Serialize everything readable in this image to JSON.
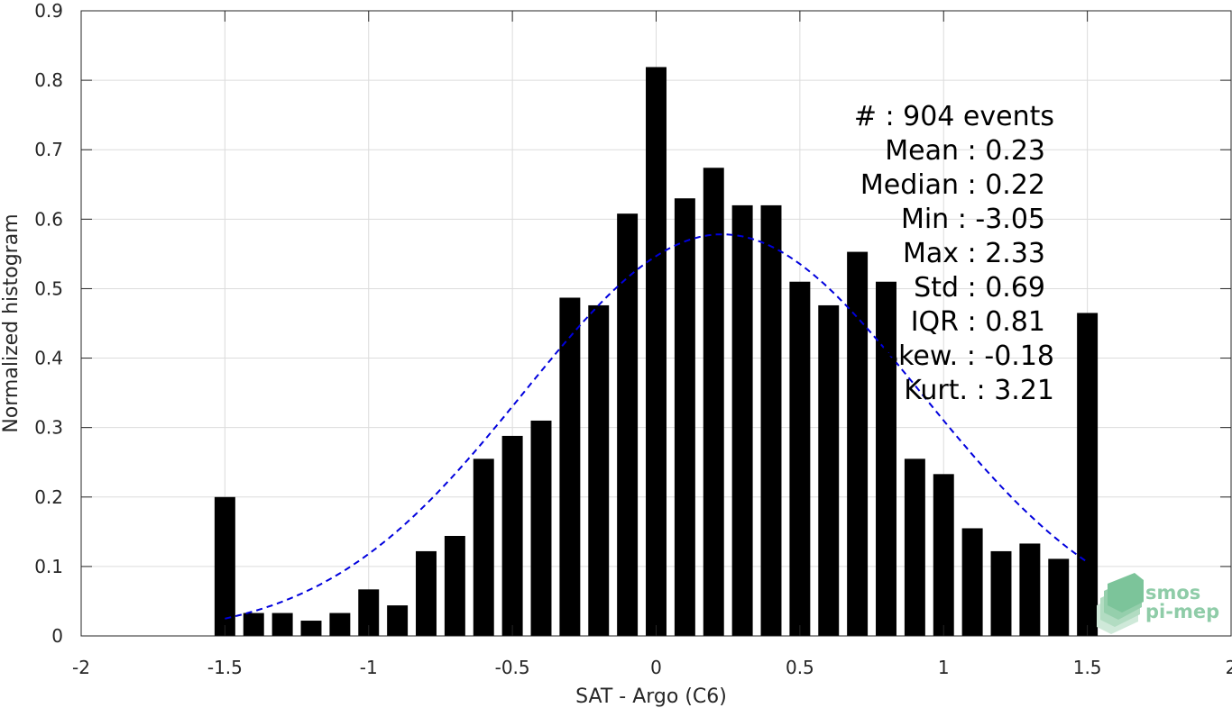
{
  "chart_data": {
    "type": "bar",
    "xlabel": "SAT - Argo (C6)",
    "ylabel": "Normalized histogram",
    "xlim": [
      -2,
      2
    ],
    "ylim": [
      0,
      0.9
    ],
    "xticks": [
      -2,
      -1.5,
      -1,
      -0.5,
      0,
      0.5,
      1,
      1.5,
      2
    ],
    "xtick_labels": [
      "-2",
      "-1.5",
      "-1",
      "-0.5",
      "0",
      "0.5",
      "1",
      "1.5",
      "2"
    ],
    "yticks": [
      0,
      0.1,
      0.2,
      0.3,
      0.4,
      0.5,
      0.6,
      0.7,
      0.8,
      0.9
    ],
    "ytick_labels": [
      "0",
      "0.1",
      "0.2",
      "0.3",
      "0.4",
      "0.5",
      "0.6",
      "0.7",
      "0.8",
      "0.9"
    ],
    "grid": true,
    "bar_color": "#000000",
    "fit_color": "#0000dd",
    "bins": [
      -1.5,
      -1.4,
      -1.3,
      -1.2,
      -1.1,
      -1.0,
      -0.9,
      -0.8,
      -0.7,
      -0.6,
      -0.5,
      -0.4,
      -0.3,
      -0.2,
      -0.1,
      0.0,
      0.1,
      0.2,
      0.3,
      0.4,
      0.5,
      0.6,
      0.7,
      0.8,
      0.9,
      1.0,
      1.1,
      1.2,
      1.3,
      1.4,
      1.5
    ],
    "values": [
      0.2,
      0.033,
      0.033,
      0.022,
      0.033,
      0.067,
      0.044,
      0.122,
      0.144,
      0.255,
      0.288,
      0.31,
      0.487,
      0.476,
      0.608,
      0.819,
      0.63,
      0.674,
      0.62,
      0.62,
      0.51,
      0.476,
      0.553,
      0.51,
      0.255,
      0.233,
      0.155,
      0.122,
      0.133,
      0.111,
      0.465
    ],
    "fit": {
      "type": "normal",
      "mean": 0.23,
      "std": 0.69,
      "x_range": [
        -1.5,
        1.5
      ],
      "style": "dashed"
    },
    "stats": [
      {
        "label": "#  : 904 events"
      },
      {
        "label": "Mean : 0.23"
      },
      {
        "label": "Median : 0.22"
      },
      {
        "label": "Min : -3.05"
      },
      {
        "label": "Max : 2.33"
      },
      {
        "label": "Std : 0.69"
      },
      {
        "label": "IQR : 0.81"
      },
      {
        "label": "Skew. : -0.18"
      },
      {
        "label": "Kurt. : 3.21"
      }
    ]
  },
  "logo": {
    "line1": "smos",
    "line2": "pi-mep"
  }
}
